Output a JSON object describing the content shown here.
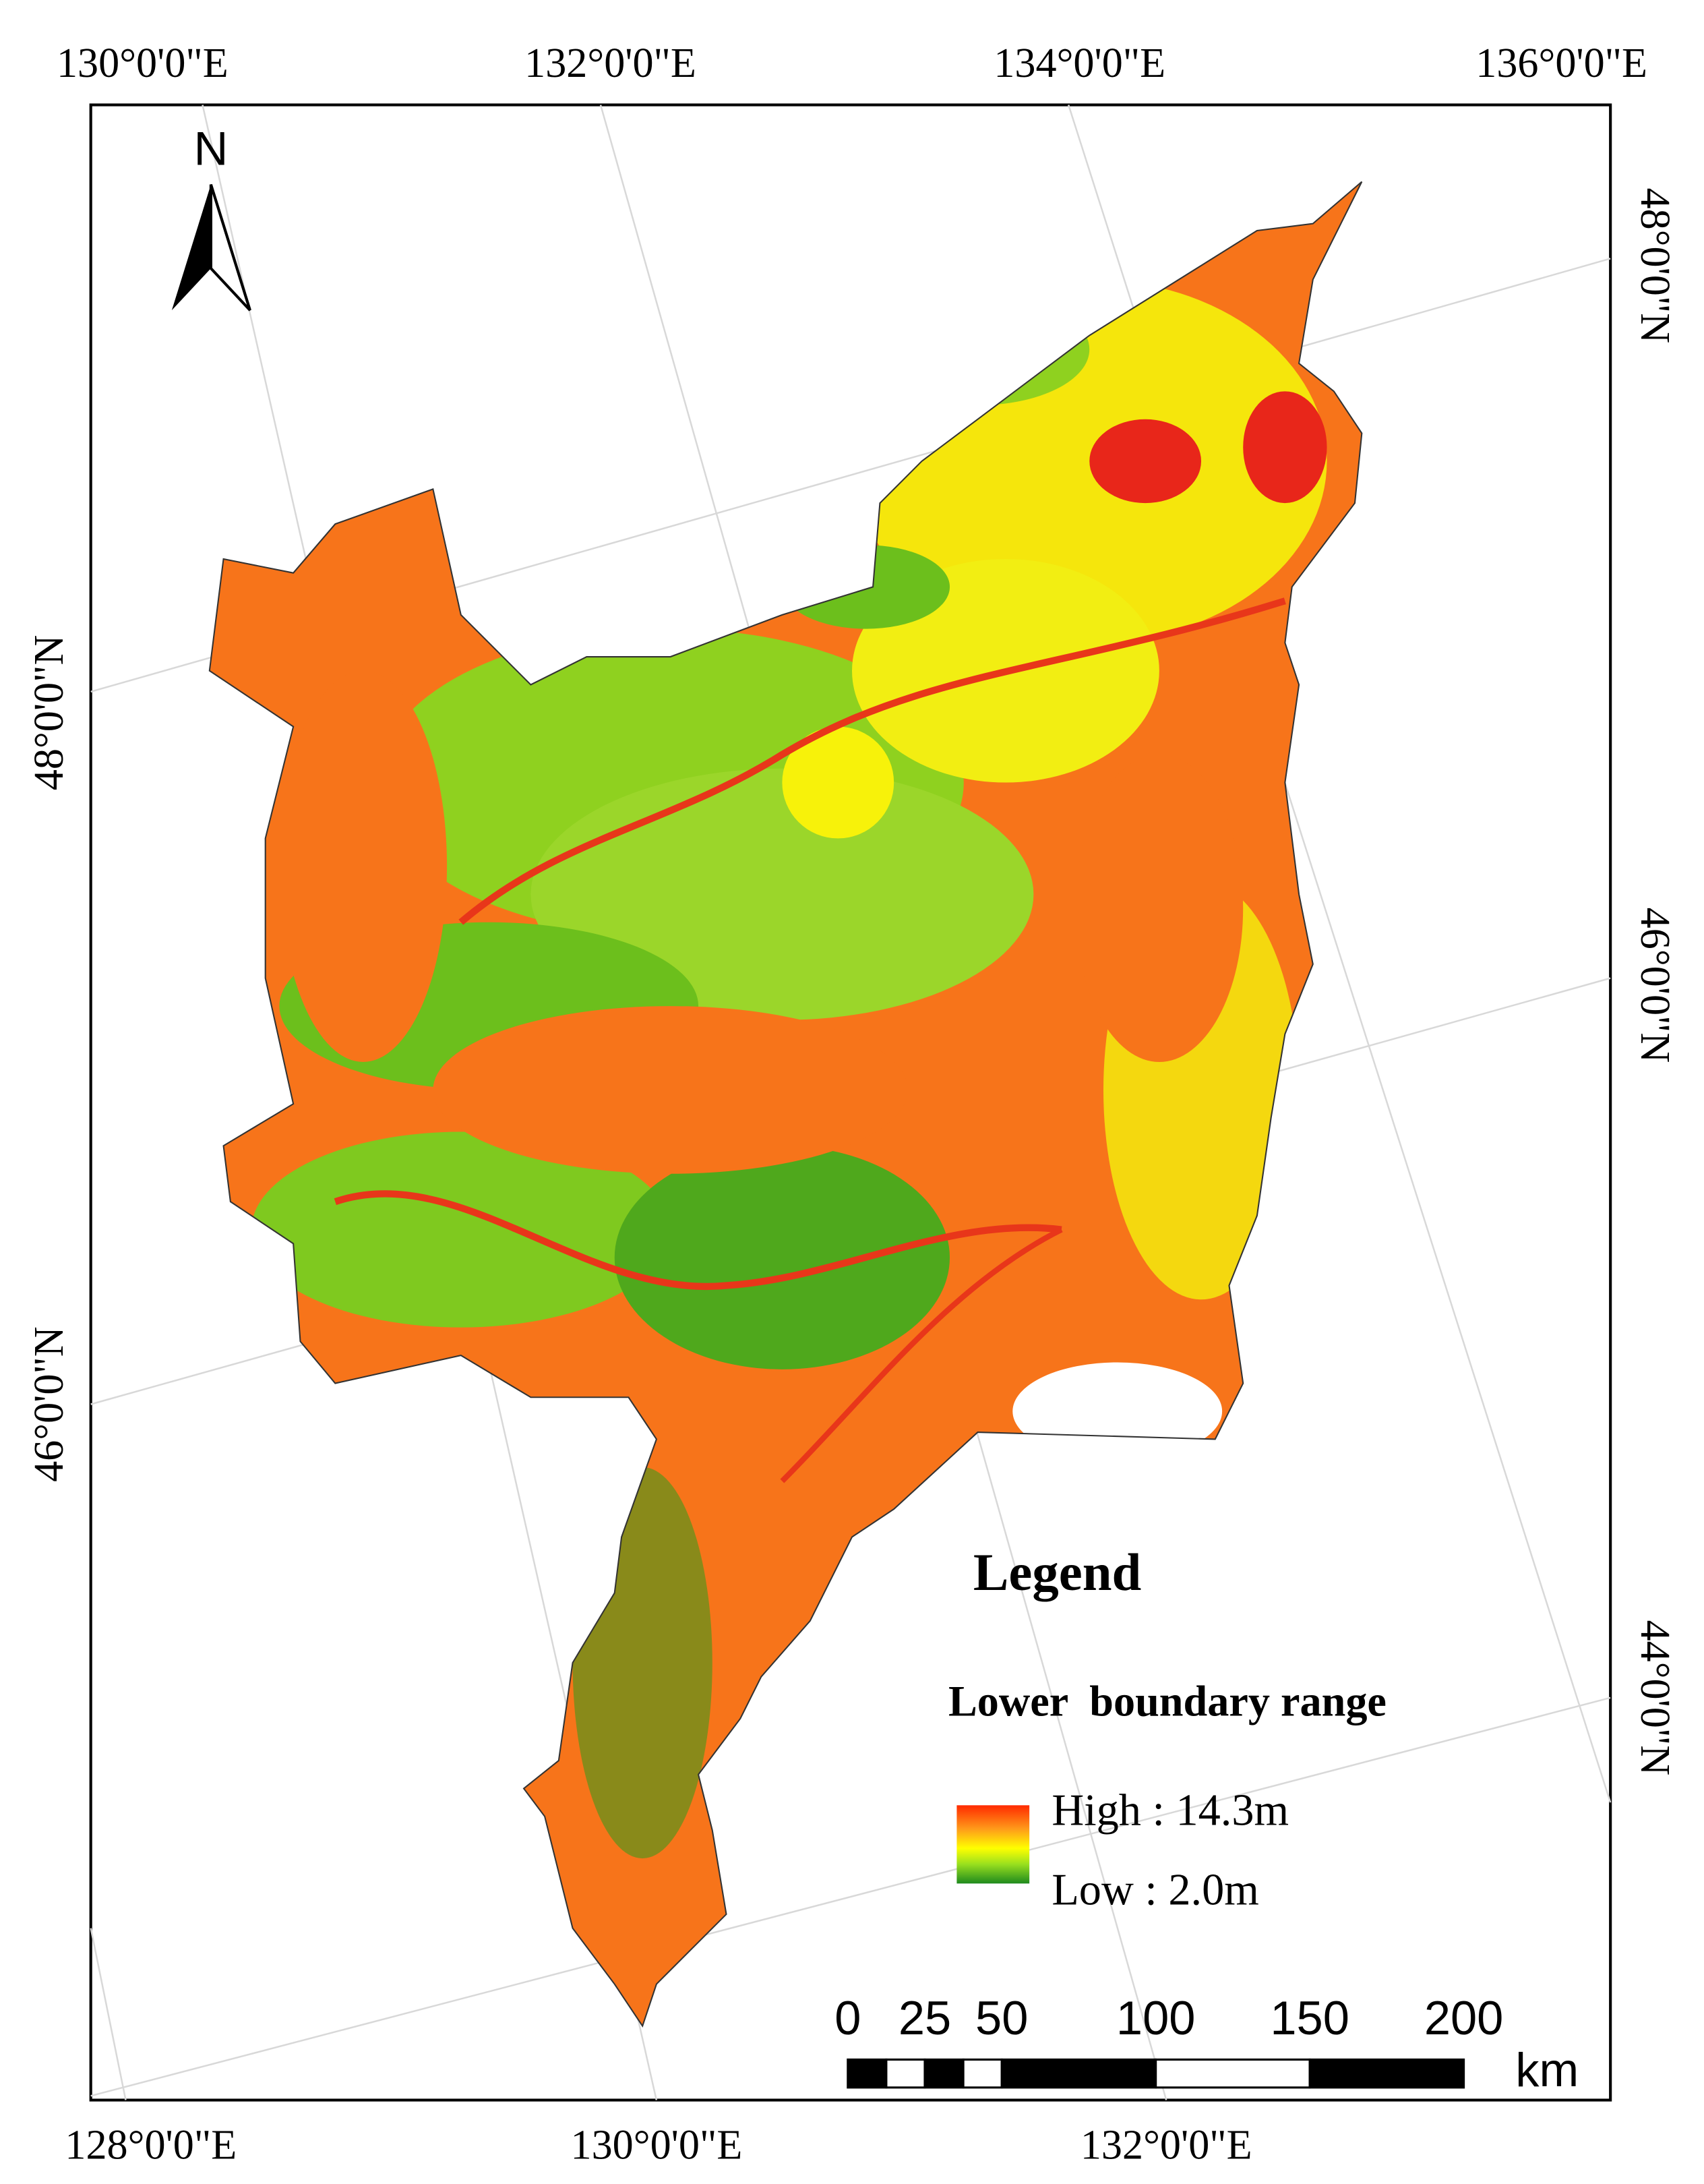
{
  "map": {
    "top_labels": [
      "130°0'0\"E",
      "132°0'0\"E",
      "134°0'0\"E",
      "136°0'0\"E"
    ],
    "bottom_labels": [
      "128°0'0\"E",
      "130°0'0\"E",
      "132°0'0\"E"
    ],
    "left_labels": [
      "48°0'0\"N",
      "46°0'0\"N"
    ],
    "right_labels": [
      "48°0'0\"N",
      "46°0'0\"N",
      "44°0'0\"N"
    ],
    "north": "N",
    "legend": {
      "title": "Legend",
      "subtitle": "Lower  boundary range",
      "high": "High : 14.3m",
      "low": "Low : 2.0m"
    },
    "scale_bar": {
      "ticks": [
        0,
        25,
        50,
        100,
        150,
        200
      ],
      "unit": "km"
    }
  }
}
